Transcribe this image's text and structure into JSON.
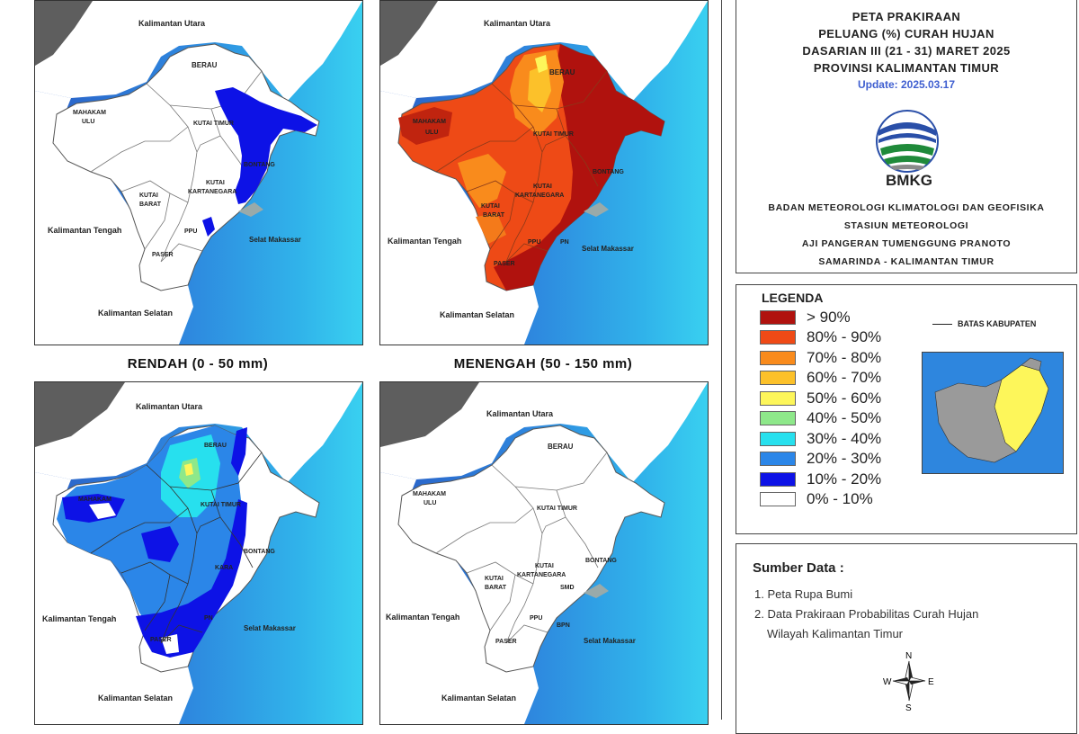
{
  "maps": [
    {
      "id": "rendah",
      "caption": "RENDAH (0 - 50 mm)",
      "labels": {
        "kaltara": "Kalimantan Utara",
        "berau": "BERAU",
        "mahakam1": "MAHAKAM",
        "mahakam2": "ULU",
        "kutim": "KUTAI TIMUR",
        "bontang": "BONTANG",
        "kukar1": "KUTAI",
        "kukar2": "KARTANEGARA",
        "kubar1": "KUTAI",
        "kubar2": "BARAT",
        "kalteng": "Kalimantan Tengah",
        "ppu": "PPU",
        "selat": "Selat Makassar",
        "paser": "PASER",
        "kalsel": "Kalimantan Selatan"
      }
    },
    {
      "id": "menengah",
      "caption": "MENENGAH (50 - 150 mm)",
      "labels": {
        "kaltara": "Kalimantan Utara",
        "berau": "BERAU",
        "mahakam1": "MAHAKAM",
        "mahakam2": "ULU",
        "kutim": "KUTAI TIMUR",
        "bontang": "BONTANG",
        "kukar1": "KUTAI",
        "kukar2": "KARTANEGARA",
        "kubar1": "KUTAI",
        "kubar2": "BARAT",
        "kalteng": "Kalimantan Tengah",
        "ppu": "PPU",
        "pn": "PN",
        "selat": "Selat Makassar",
        "paser": "PASER",
        "kalsel": "Kalimantan Selatan"
      }
    },
    {
      "id": "tinggi",
      "caption": "",
      "labels": {
        "kaltara": "Kalimantan Utara",
        "berau": "BERAU",
        "mahakam1": "MAHAKAM",
        "kutim": "KUTAI TIMUR",
        "bontang": "BONTANG",
        "kukar2": "KARA",
        "kalteng": "Kalimantan Tengah",
        "pn": "PN",
        "selat": "Selat Makassar",
        "paser": "PASER",
        "kalsel": "Kalimantan Selatan"
      }
    },
    {
      "id": "sangat-tinggi",
      "caption": "",
      "labels": {
        "kaltara": "Kalimantan Utara",
        "berau": "BERAU",
        "mahakam1": "MAHAKAM",
        "mahakam2": "ULU",
        "kutim": "KUTAI TIMUR",
        "bontang": "BONTANG",
        "kukar1": "KUTAI",
        "kukar2": "KARTANEGARA",
        "kubar1": "KUTAI",
        "kubar2": "BARAT",
        "kalteng": "Kalimantan Tengah",
        "smd": "SMD",
        "ppu": "PPU",
        "pn": "BPN",
        "selat": "Selat Makassar",
        "paser": "PASER",
        "kalsel": "Kalimantan Selatan"
      }
    }
  ],
  "title": {
    "line1": "PETA PRAKIRAAN",
    "line2": "PELUANG (%) CURAH HUJAN",
    "line3": "DASARIAN III (21 - 31) MARET 2025",
    "line4": "PROVINSI KALIMANTAN TIMUR",
    "update": "Update: 2025.03.17",
    "logo_text": "BMKG",
    "org1": "BADAN METEOROLOGI KLIMATOLOGI DAN GEOFISIKA",
    "org2": "STASIUN METEOROLOGI",
    "org3": "AJI PANGERAN TUMENGGUNG PRANOTO",
    "org4": "SAMARINDA - KALIMANTAN TIMUR"
  },
  "legend": {
    "title": "LEGENDA",
    "boundary_label": "BATAS KABUPATEN",
    "items": [
      {
        "label": "> 90%",
        "color": "#b0120e"
      },
      {
        "label": "80% - 90%",
        "color": "#ef4a16"
      },
      {
        "label": "70% - 80%",
        "color": "#f98b1c"
      },
      {
        "label": "60% - 70%",
        "color": "#fcc12a"
      },
      {
        "label": "50% - 60%",
        "color": "#fdf65a"
      },
      {
        "label": "40% - 50%",
        "color": "#8ee88a"
      },
      {
        "label": "30% - 40%",
        "color": "#27e0ee"
      },
      {
        "label": "20% - 30%",
        "color": "#2b86e8"
      },
      {
        "label": "10% - 20%",
        "color": "#0d12e6"
      },
      {
        "label": "0% - 10%",
        "color": "#ffffff"
      }
    ]
  },
  "sources": {
    "title": "Sumber Data :",
    "item1": "1. Peta Rupa Bumi",
    "item2a": "2. Data Prakiraan Probabilitas Curah Hujan",
    "item2b": "Wilayah Kalimantan Timur",
    "north_n": "N",
    "north_s": "S",
    "north_e": "E",
    "north_w": "W"
  },
  "colors": {
    "sea_deep": "#2a5fc6",
    "sea_mid": "#2e86de",
    "sea_shallow": "#34c3ee",
    "land_neighbor": "#ffffff",
    "land_dark": "#5e5e5e"
  }
}
